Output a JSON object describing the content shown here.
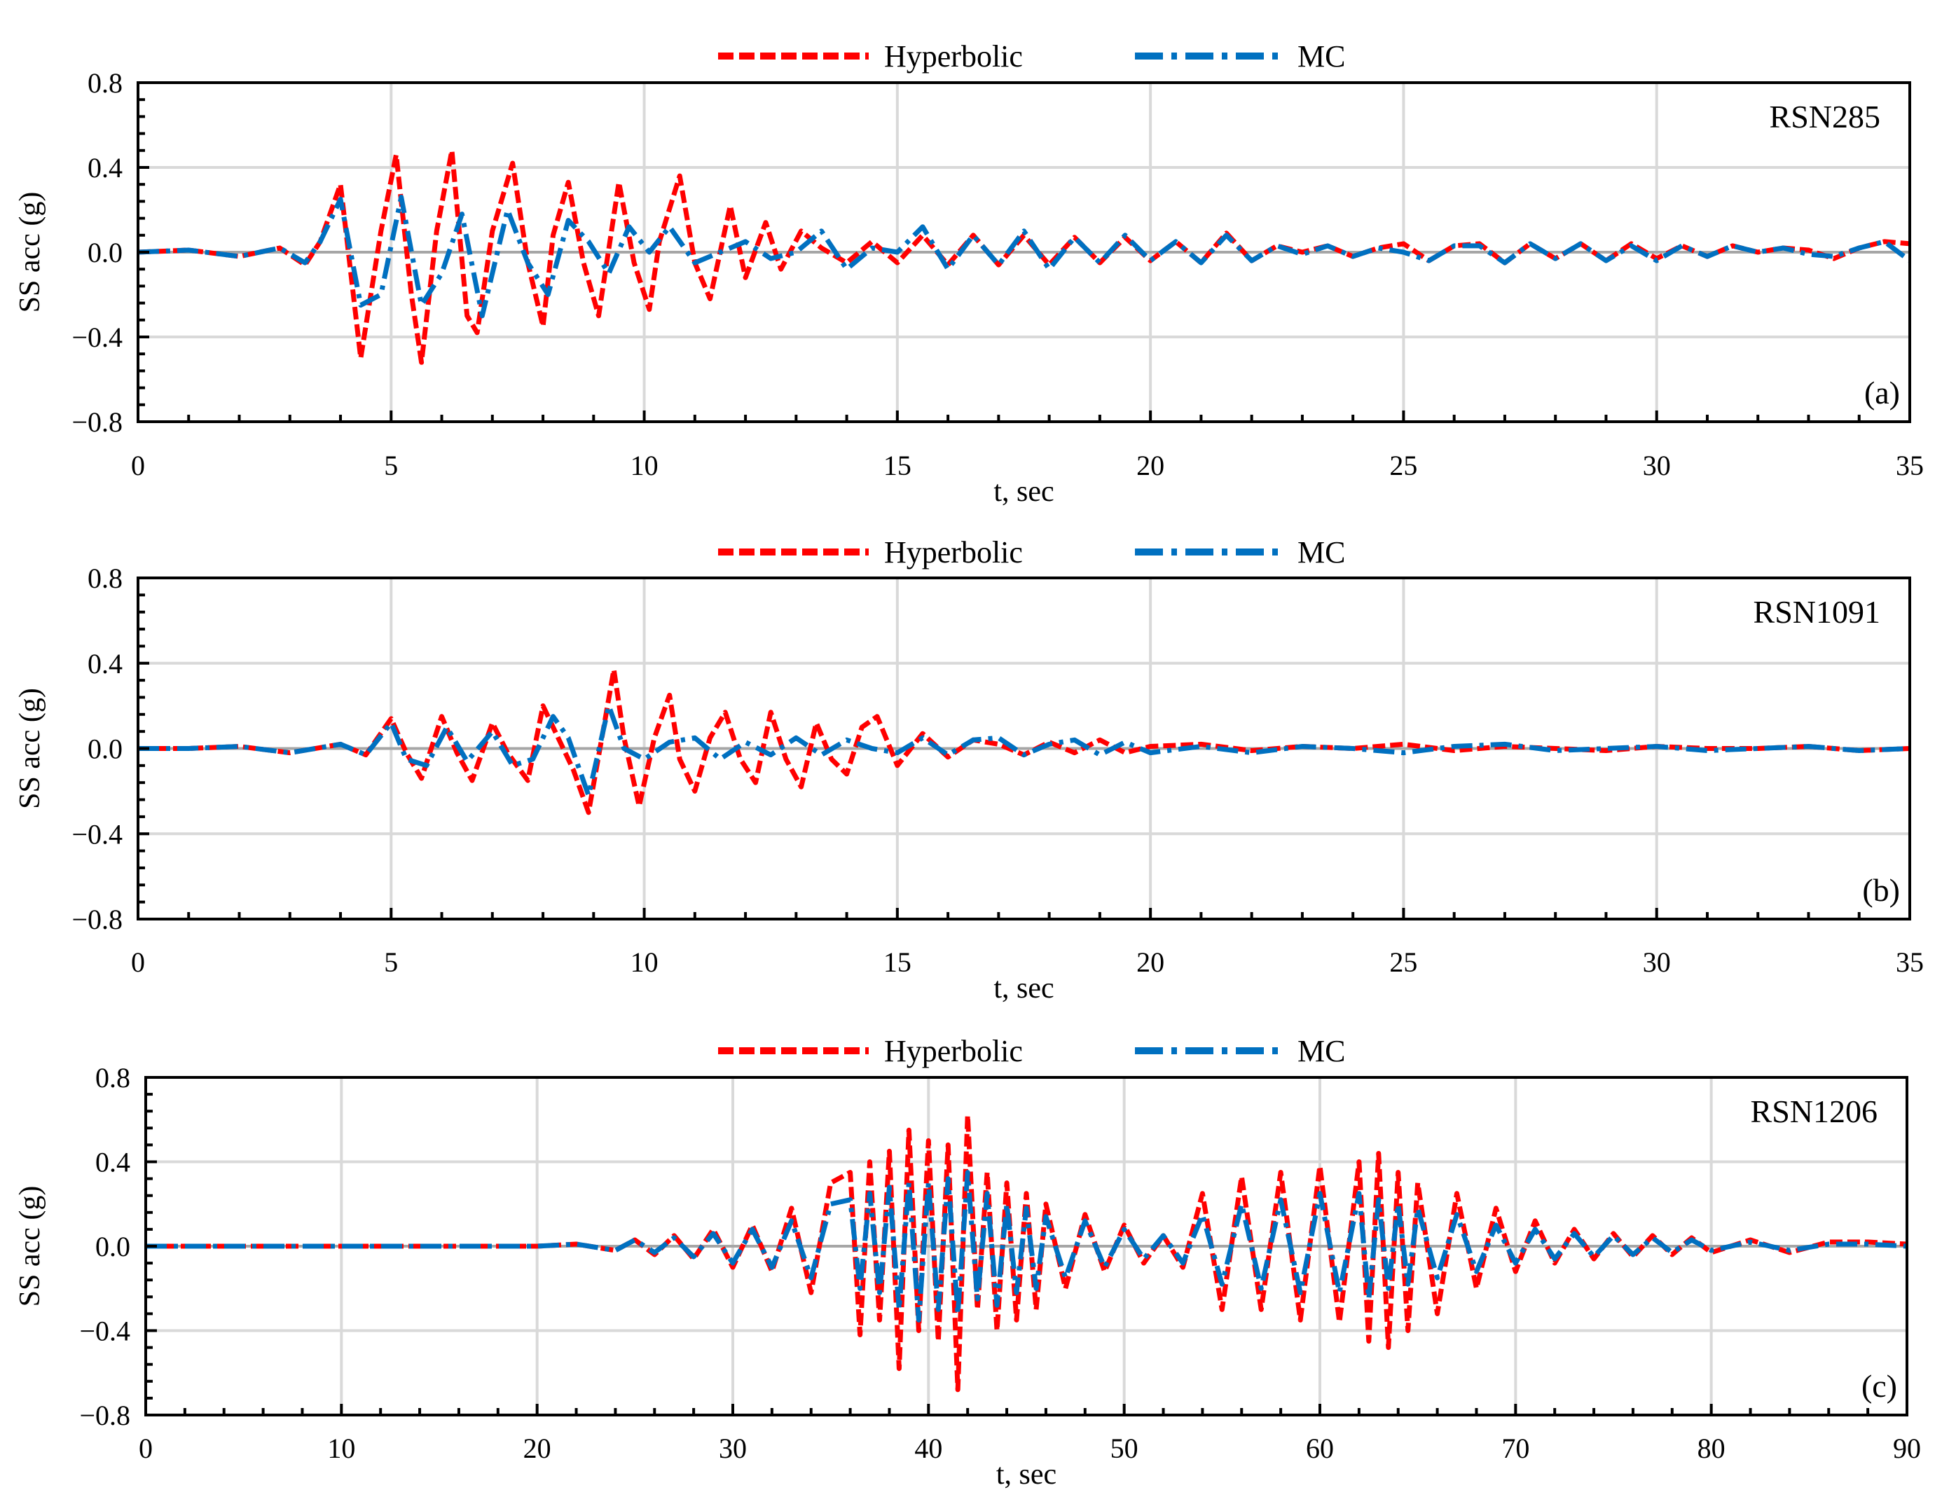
{
  "colors": {
    "hyperbolic": "#ff0000",
    "mc": "#0070c0",
    "grid": "#d9d9d9",
    "axis": "#000000",
    "zero_line": "#a6a6a6"
  },
  "chart_data": [
    {
      "type": "line",
      "panel_tag": "(a)",
      "station": "RSN285",
      "xlabel": "t, sec",
      "ylabel": "SS acc (g)",
      "xlim": [
        0,
        35
      ],
      "ylim": [
        -0.8,
        0.8
      ],
      "xticks": [
        "0",
        "5",
        "10",
        "15",
        "20",
        "25",
        "30",
        "35"
      ],
      "yticks": [
        "0.8",
        "0.4",
        "0.0",
        "−0.4",
        "−0.8"
      ],
      "grid": true,
      "legend": [
        "Hyperbolic",
        "MC"
      ],
      "series": [
        {
          "name": "Hyperbolic",
          "x": [
            0,
            1,
            2,
            2.8,
            3.3,
            3.6,
            4.0,
            4.4,
            4.8,
            5.1,
            5.4,
            5.6,
            5.9,
            6.2,
            6.5,
            6.7,
            7.0,
            7.4,
            7.7,
            8.0,
            8.2,
            8.5,
            8.8,
            9.1,
            9.5,
            9.8,
            10.1,
            10.3,
            10.7,
            11.0,
            11.3,
            11.7,
            12.0,
            12.4,
            12.7,
            13.1,
            13.5,
            14.0,
            14.5,
            15.0,
            15.5,
            16.0,
            16.5,
            17.0,
            17.5,
            18.0,
            18.5,
            19.0,
            19.5,
            20.0,
            20.5,
            21.0,
            21.5,
            22.0,
            22.5,
            23.0,
            23.5,
            24.0,
            24.5,
            25.0,
            25.5,
            26.0,
            26.5,
            27.0,
            27.5,
            28.0,
            28.5,
            29.0,
            29.5,
            30.0,
            30.5,
            31.0,
            31.5,
            32.0,
            32.5,
            33.0,
            33.5,
            34.0,
            34.5,
            35.0
          ],
          "values": [
            0,
            0.01,
            -0.02,
            0.02,
            -0.06,
            0.05,
            0.32,
            -0.5,
            0.1,
            0.46,
            -0.2,
            -0.52,
            0.1,
            0.48,
            -0.3,
            -0.38,
            0.1,
            0.42,
            -0.05,
            -0.35,
            0.08,
            0.33,
            -0.05,
            -0.3,
            0.33,
            -0.05,
            -0.27,
            0.05,
            0.36,
            -0.05,
            -0.22,
            0.22,
            -0.12,
            0.14,
            -0.08,
            0.1,
            0.02,
            -0.05,
            0.05,
            -0.05,
            0.08,
            -0.06,
            0.08,
            -0.06,
            0.08,
            -0.06,
            0.07,
            -0.05,
            0.07,
            -0.04,
            0.05,
            -0.05,
            0.09,
            -0.04,
            0.03,
            0.0,
            0.03,
            -0.02,
            0.02,
            0.04,
            -0.04,
            0.03,
            0.04,
            -0.05,
            0.04,
            -0.03,
            0.04,
            -0.04,
            0.04,
            -0.03,
            0.03,
            -0.02,
            0.03,
            0.0,
            0.02,
            0.01,
            -0.03,
            0.02,
            0.05,
            0.04
          ]
        },
        {
          "name": "MC",
          "x": [
            0,
            1,
            2,
            2.8,
            3.3,
            3.6,
            4.0,
            4.4,
            4.8,
            5.2,
            5.6,
            6.0,
            6.4,
            6.8,
            7.3,
            7.7,
            8.1,
            8.5,
            8.9,
            9.3,
            9.7,
            10.1,
            10.5,
            11.0,
            11.5,
            12.0,
            12.5,
            13.0,
            13.5,
            14.0,
            14.5,
            15.0,
            15.5,
            16.0,
            16.5,
            17.0,
            17.5,
            18.0,
            18.5,
            19.0,
            19.5,
            20.0,
            20.5,
            21.0,
            21.5,
            22.0,
            22.5,
            23.0,
            23.5,
            24.0,
            24.5,
            25.0,
            25.5,
            26.0,
            26.5,
            27.0,
            27.5,
            28.0,
            28.5,
            29.0,
            29.5,
            30.0,
            30.5,
            31.0,
            31.5,
            32.0,
            32.5,
            33.0,
            33.5,
            34.0,
            34.5,
            35.0
          ],
          "values": [
            0,
            0.01,
            -0.02,
            0.02,
            -0.05,
            0.05,
            0.25,
            -0.25,
            -0.2,
            0.26,
            -0.25,
            -0.1,
            0.18,
            -0.3,
            0.2,
            -0.05,
            -0.2,
            0.15,
            0.05,
            -0.1,
            0.12,
            0.0,
            0.12,
            -0.05,
            0.0,
            0.05,
            -0.03,
            0.0,
            0.1,
            -0.08,
            0.02,
            0.0,
            0.12,
            -0.08,
            0.08,
            -0.06,
            0.1,
            -0.08,
            0.07,
            -0.05,
            0.08,
            -0.04,
            0.05,
            -0.05,
            0.08,
            -0.04,
            0.03,
            -0.01,
            0.03,
            -0.02,
            0.02,
            0.0,
            -0.04,
            0.03,
            0.03,
            -0.05,
            0.04,
            -0.03,
            0.04,
            -0.04,
            0.03,
            -0.04,
            0.03,
            -0.02,
            0.03,
            0.0,
            0.02,
            -0.01,
            -0.02,
            0.02,
            0.05,
            -0.04
          ]
        }
      ]
    },
    {
      "type": "line",
      "panel_tag": "(b)",
      "station": "RSN1091",
      "xlabel": "t, sec",
      "ylabel": "SS acc (g)",
      "xlim": [
        0,
        35
      ],
      "ylim": [
        -0.8,
        0.8
      ],
      "xticks": [
        "0",
        "5",
        "10",
        "15",
        "20",
        "25",
        "30",
        "35"
      ],
      "yticks": [
        "0.8",
        "0.4",
        "0.0",
        "−0.4",
        "−0.8"
      ],
      "grid": true,
      "legend": [
        "Hyperbolic",
        "MC"
      ],
      "series": [
        {
          "name": "Hyperbolic",
          "x": [
            0,
            1,
            2,
            3,
            4,
            4.5,
            5.0,
            5.3,
            5.6,
            6.0,
            6.3,
            6.6,
            7.0,
            7.3,
            7.7,
            8.0,
            8.3,
            8.6,
            8.9,
            9.2,
            9.4,
            9.6,
            9.9,
            10.2,
            10.5,
            10.7,
            11.0,
            11.3,
            11.6,
            11.9,
            12.2,
            12.5,
            12.8,
            13.1,
            13.4,
            13.7,
            14.0,
            14.3,
            14.6,
            15.0,
            15.5,
            16.0,
            16.5,
            17.0,
            17.5,
            18.0,
            18.5,
            19.0,
            19.5,
            20.0,
            21.0,
            22.0,
            23.0,
            24.0,
            25.0,
            26.0,
            27.0,
            28.0,
            29.0,
            30.0,
            31.0,
            32.0,
            33.0,
            34.0,
            35.0
          ],
          "values": [
            0,
            0,
            0.01,
            -0.02,
            0.02,
            -0.03,
            0.14,
            -0.02,
            -0.14,
            0.15,
            -0.02,
            -0.15,
            0.12,
            -0.02,
            -0.15,
            0.2,
            0.05,
            -0.1,
            -0.3,
            0.1,
            0.37,
            0.05,
            -0.27,
            0.05,
            0.25,
            -0.05,
            -0.2,
            0.05,
            0.17,
            -0.05,
            -0.16,
            0.17,
            -0.05,
            -0.18,
            0.12,
            -0.05,
            -0.12,
            0.1,
            0.15,
            -0.08,
            0.07,
            -0.04,
            0.04,
            0.02,
            -0.03,
            0.03,
            -0.02,
            0.04,
            -0.02,
            0.01,
            0.02,
            -0.01,
            0.01,
            0.0,
            0.02,
            -0.01,
            0.01,
            0.0,
            -0.01,
            0.01,
            0.0,
            0.0,
            0.01,
            -0.01,
            0.0
          ]
        },
        {
          "name": "MC",
          "x": [
            0,
            1,
            2,
            3,
            4,
            4.5,
            5.0,
            5.3,
            5.7,
            6.1,
            6.5,
            7.0,
            7.4,
            7.8,
            8.2,
            8.5,
            8.9,
            9.3,
            9.6,
            10.0,
            10.5,
            11.0,
            11.5,
            12.0,
            12.5,
            13.0,
            13.5,
            14.0,
            14.5,
            15.0,
            15.5,
            16.0,
            16.5,
            17.0,
            17.5,
            18.0,
            18.5,
            19.0,
            19.5,
            20.0,
            21.0,
            22.0,
            23.0,
            24.0,
            25.0,
            26.0,
            27.0,
            28.0,
            29.0,
            30.0,
            31.0,
            32.0,
            33.0,
            34.0,
            35.0
          ],
          "values": [
            0,
            0,
            0.01,
            -0.02,
            0.02,
            -0.03,
            0.12,
            -0.05,
            -0.08,
            0.1,
            -0.06,
            0.08,
            -0.08,
            -0.05,
            0.15,
            0.05,
            -0.22,
            0.2,
            0.0,
            -0.05,
            0.03,
            0.05,
            -0.05,
            0.03,
            -0.03,
            0.05,
            -0.03,
            0.04,
            0.0,
            -0.02,
            0.05,
            -0.03,
            0.04,
            0.05,
            -0.03,
            0.02,
            0.04,
            -0.03,
            0.03,
            -0.02,
            0.01,
            -0.02,
            0.01,
            0.0,
            -0.02,
            0.01,
            0.02,
            -0.01,
            0.0,
            0.01,
            -0.01,
            0.0,
            0.01,
            -0.01,
            0.0
          ]
        }
      ]
    },
    {
      "type": "line",
      "panel_tag": "(c)",
      "station": "RSN1206",
      "xlabel": "t, sec",
      "ylabel": "SS acc (g)",
      "xlim": [
        0,
        90
      ],
      "ylim": [
        -0.8,
        0.8
      ],
      "xticks": [
        "0",
        "10",
        "20",
        "30",
        "40",
        "50",
        "60",
        "70",
        "80",
        "90"
      ],
      "yticks": [
        "0.8",
        "0.4",
        "0.0",
        "−0.4",
        "−0.8"
      ],
      "grid": true,
      "legend": [
        "Hyperbolic",
        "MC"
      ],
      "series": [
        {
          "name": "Hyperbolic",
          "x": [
            0,
            10,
            20,
            22,
            24,
            25,
            26,
            27,
            28,
            29,
            30,
            31,
            32,
            33,
            34,
            35,
            36,
            36.5,
            37,
            37.5,
            38,
            38.5,
            39,
            39.5,
            40,
            40.5,
            41,
            41.5,
            42,
            42.5,
            43,
            43.5,
            44,
            44.5,
            45,
            45.5,
            46,
            47,
            48,
            49,
            50,
            51,
            52,
            53,
            54,
            55,
            56,
            57,
            58,
            59,
            60,
            61,
            62,
            62.5,
            63,
            63.5,
            64,
            64.5,
            65,
            66,
            67,
            68,
            69,
            70,
            71,
            72,
            73,
            74,
            75,
            76,
            77,
            78,
            79,
            80,
            82,
            84,
            86,
            88,
            90
          ],
          "values": [
            0,
            0,
            0,
            0.01,
            -0.02,
            0.03,
            -0.04,
            0.05,
            -0.06,
            0.08,
            -0.1,
            0.1,
            -0.12,
            0.18,
            -0.22,
            0.3,
            0.35,
            -0.42,
            0.4,
            -0.35,
            0.45,
            -0.58,
            0.55,
            -0.4,
            0.5,
            -0.45,
            0.48,
            -0.68,
            0.62,
            -0.3,
            0.35,
            -0.4,
            0.3,
            -0.35,
            0.25,
            -0.3,
            0.2,
            -0.2,
            0.15,
            -0.12,
            0.1,
            -0.08,
            0.05,
            -0.1,
            0.25,
            -0.3,
            0.33,
            -0.3,
            0.35,
            -0.35,
            0.38,
            -0.36,
            0.4,
            -0.45,
            0.44,
            -0.48,
            0.35,
            -0.4,
            0.3,
            -0.32,
            0.25,
            -0.2,
            0.18,
            -0.12,
            0.12,
            -0.08,
            0.08,
            -0.06,
            0.06,
            -0.05,
            0.05,
            -0.04,
            0.04,
            -0.03,
            0.03,
            -0.03,
            0.02,
            0.02,
            0.01
          ]
        },
        {
          "name": "MC",
          "x": [
            0,
            10,
            20,
            22,
            24,
            25,
            26,
            27,
            28,
            29,
            30,
            31,
            32,
            33,
            34,
            35,
            36,
            36.5,
            37,
            37.5,
            38,
            38.5,
            39,
            39.5,
            40,
            40.5,
            41,
            41.5,
            42,
            42.5,
            43,
            43.5,
            44,
            44.5,
            45,
            45.5,
            46,
            47,
            48,
            49,
            50,
            51,
            52,
            53,
            54,
            55,
            56,
            57,
            58,
            59,
            60,
            61,
            62,
            62.5,
            63,
            63.5,
            64,
            64.5,
            65,
            66,
            67,
            68,
            69,
            70,
            71,
            72,
            73,
            74,
            75,
            76,
            77,
            78,
            79,
            80,
            82,
            84,
            86,
            88,
            90
          ],
          "values": [
            0,
            0,
            0,
            0.01,
            -0.02,
            0.03,
            -0.03,
            0.04,
            -0.05,
            0.06,
            -0.08,
            0.08,
            -0.1,
            0.12,
            -0.15,
            0.2,
            0.22,
            -0.2,
            0.25,
            -0.22,
            0.28,
            -0.3,
            0.3,
            -0.35,
            0.3,
            -0.3,
            0.32,
            -0.32,
            0.35,
            -0.25,
            0.25,
            -0.28,
            0.2,
            -0.22,
            0.18,
            -0.2,
            0.14,
            -0.15,
            0.12,
            -0.1,
            0.08,
            -0.06,
            0.05,
            -0.08,
            0.15,
            -0.18,
            0.2,
            -0.2,
            0.22,
            -0.22,
            0.25,
            -0.22,
            0.25,
            -0.25,
            0.22,
            -0.2,
            0.2,
            -0.18,
            0.18,
            -0.15,
            0.15,
            -0.12,
            0.1,
            -0.08,
            0.08,
            -0.06,
            0.06,
            -0.05,
            0.05,
            -0.04,
            0.04,
            -0.03,
            0.03,
            -0.02,
            0.02,
            -0.02,
            0.01,
            0.01,
            0.0
          ]
        }
      ]
    }
  ]
}
